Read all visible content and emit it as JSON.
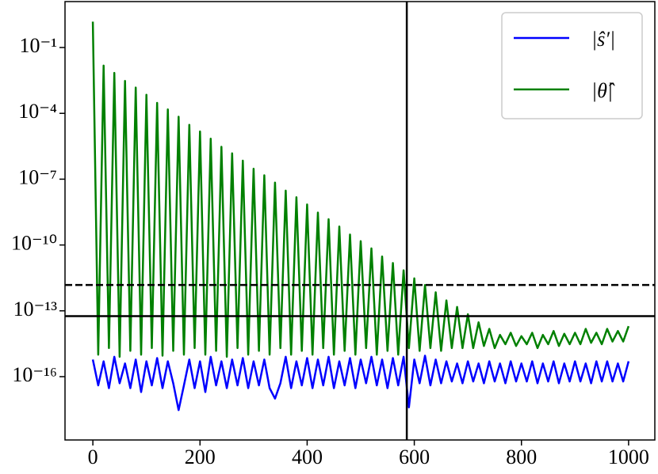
{
  "chart_data": {
    "type": "line",
    "yscale": "log",
    "legend": "upper right",
    "x": [
      0,
      10,
      20,
      30,
      40,
      50,
      60,
      70,
      80,
      90,
      100,
      110,
      120,
      130,
      140,
      150,
      160,
      170,
      180,
      190,
      200,
      210,
      220,
      230,
      240,
      250,
      260,
      270,
      280,
      290,
      300,
      310,
      320,
      330,
      340,
      350,
      360,
      370,
      380,
      390,
      400,
      410,
      420,
      430,
      440,
      450,
      460,
      470,
      480,
      490,
      500,
      510,
      520,
      530,
      540,
      550,
      560,
      570,
      580,
      590,
      600,
      610,
      620,
      630,
      640,
      650,
      660,
      670,
      680,
      690,
      700,
      710,
      720,
      730,
      740,
      750,
      760,
      770,
      780,
      790,
      800,
      810,
      820,
      830,
      840,
      850,
      860,
      870,
      880,
      890,
      900,
      910,
      920,
      930,
      940,
      950,
      960,
      970,
      980,
      990,
      1000
    ],
    "series": [
      {
        "name": "|ŝ′|",
        "color": "#0000ff",
        "values": [
          6e-16,
          4e-17,
          5e-16,
          3e-17,
          8e-16,
          5e-17,
          4e-16,
          3e-17,
          6e-16,
          2e-17,
          5e-16,
          4e-17,
          7e-16,
          3e-17,
          5e-16,
          5e-17,
          3e-18,
          4e-17,
          6e-16,
          3e-17,
          5e-16,
          2e-17,
          8e-16,
          4e-17,
          5e-16,
          3e-17,
          6e-16,
          4e-17,
          7e-16,
          3e-17,
          5e-16,
          4e-17,
          6e-16,
          3e-17,
          1e-17,
          5e-17,
          8e-16,
          3e-17,
          5e-16,
          4e-17,
          7e-16,
          3e-17,
          6e-16,
          4e-17,
          8e-16,
          3e-17,
          5e-16,
          4e-17,
          7e-16,
          3e-17,
          6e-16,
          5e-17,
          8e-16,
          4e-17,
          6e-16,
          3e-17,
          7e-16,
          4e-17,
          8e-16,
          4e-18,
          6e-16,
          5e-17,
          9e-16,
          4e-17,
          6e-16,
          5e-17,
          5e-16,
          6e-17,
          4e-16,
          5e-17,
          5e-16,
          6e-17,
          4e-16,
          5e-17,
          5e-16,
          6e-17,
          4e-16,
          5e-17,
          5e-16,
          6e-17,
          4e-16,
          6e-17,
          5e-16,
          5e-17,
          4e-16,
          6e-17,
          5e-16,
          5e-17,
          4e-16,
          6e-17,
          5e-16,
          6e-17,
          4e-16,
          5e-17,
          5e-16,
          6e-17,
          5e-16,
          6e-17,
          4e-16,
          6e-17,
          5e-16
        ]
      },
      {
        "name": "|θ̂|",
        "color": "#008000",
        "values": [
          1.5,
          1e-15,
          0.015,
          2e-15,
          0.007,
          8e-16,
          0.003,
          1.5e-15,
          0.0015,
          1e-15,
          0.0007,
          2e-15,
          0.0003,
          9e-16,
          0.00015,
          1.5e-15,
          7e-05,
          1e-15,
          3e-05,
          2e-15,
          1.5e-05,
          1e-15,
          7e-06,
          1.5e-15,
          3e-06,
          8e-16,
          1.5e-06,
          2e-15,
          7e-07,
          1e-15,
          3e-07,
          1.5e-15,
          1.5e-07,
          1e-15,
          7e-08,
          2e-15,
          3e-08,
          1e-15,
          1.5e-08,
          1.5e-15,
          7e-09,
          1e-15,
          3e-09,
          2e-15,
          1.5e-09,
          1e-15,
          7e-10,
          1.5e-15,
          3e-10,
          1e-15,
          1.5e-10,
          2e-15,
          7e-11,
          1e-15,
          3e-11,
          1.5e-15,
          1.5e-11,
          1e-15,
          7e-12,
          2e-15,
          3e-12,
          1.5e-15,
          1.5e-12,
          2e-15,
          7e-13,
          1.5e-15,
          3e-13,
          2e-15,
          1.5e-13,
          2e-15,
          7e-14,
          2e-15,
          3e-14,
          2.5e-15,
          1.5e-14,
          2e-15,
          8e-15,
          3e-15,
          1e-14,
          2.5e-15,
          7e-15,
          3e-15,
          1e-14,
          2e-15,
          8e-15,
          3e-15,
          1.2e-14,
          2.5e-15,
          9e-15,
          3e-15,
          1e-14,
          3e-15,
          1.5e-14,
          3.5e-15,
          1e-14,
          3e-15,
          1.5e-14,
          4e-15,
          1.2e-14,
          4e-15,
          2e-14
        ]
      }
    ],
    "hlines": [
      {
        "value": 1.5e-12,
        "style": "dashed"
      },
      {
        "value": 5.7e-14,
        "style": "solid"
      }
    ],
    "vlines": [
      {
        "value": 586,
        "style": "solid"
      }
    ],
    "xlim": [
      -52,
      1049
    ],
    "xticks": [
      0,
      200,
      400,
      600,
      800,
      1000
    ],
    "ylim": [
      1.3e-19,
      12.4
    ],
    "yticks": [
      {
        "value": 0.1,
        "label": "10⁻¹"
      },
      {
        "value": 0.0001,
        "label": "10⁻⁴"
      },
      {
        "value": 1e-07,
        "label": "10⁻⁷"
      },
      {
        "value": 1e-10,
        "label": "10⁻¹⁰"
      },
      {
        "value": 1e-13,
        "label": "10⁻¹³"
      },
      {
        "value": 1e-16,
        "label": "10⁻¹⁶"
      }
    ]
  }
}
